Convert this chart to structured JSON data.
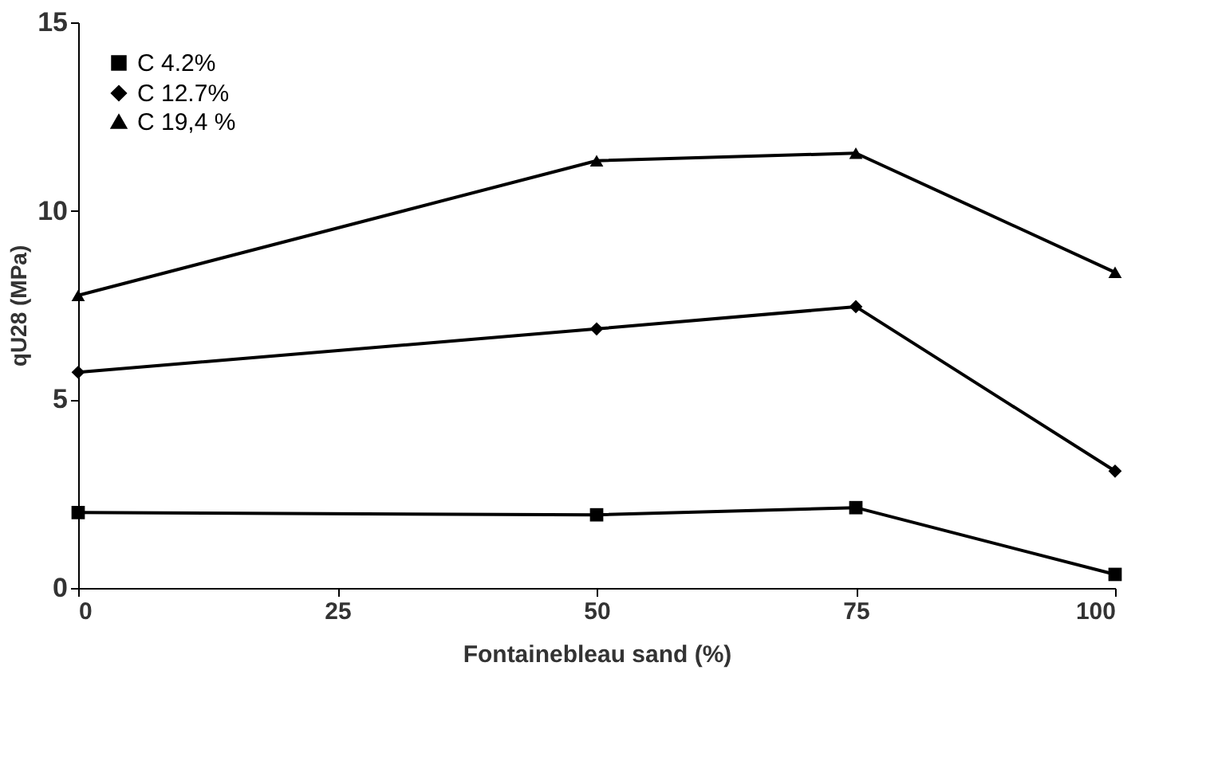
{
  "chart_data": {
    "type": "line",
    "xlabel": "Fontainebleau sand (%)",
    "ylabel": "qU28 (MPa)",
    "x": [
      0,
      50,
      75,
      100
    ],
    "xlim": [
      0,
      100
    ],
    "xticks": [
      0,
      25,
      50,
      75,
      100
    ],
    "ylim": [
      0,
      15
    ],
    "yticks": [
      0,
      5,
      10,
      15
    ],
    "grid": false,
    "legend": "top left",
    "line_style": "solid",
    "series": [
      {
        "name": "C 4.2%",
        "color": "#000000",
        "marker": "square",
        "values": [
          2.0,
          1.94,
          2.13,
          0.36
        ]
      },
      {
        "name": "C 12.7%",
        "color": "#000000",
        "marker": "diamond",
        "values": [
          5.72,
          6.87,
          7.46,
          3.1
        ]
      },
      {
        "name": "C 19,4 %",
        "color": "#000000",
        "marker": "triangle",
        "values": [
          7.76,
          11.33,
          11.53,
          8.37
        ]
      }
    ]
  }
}
